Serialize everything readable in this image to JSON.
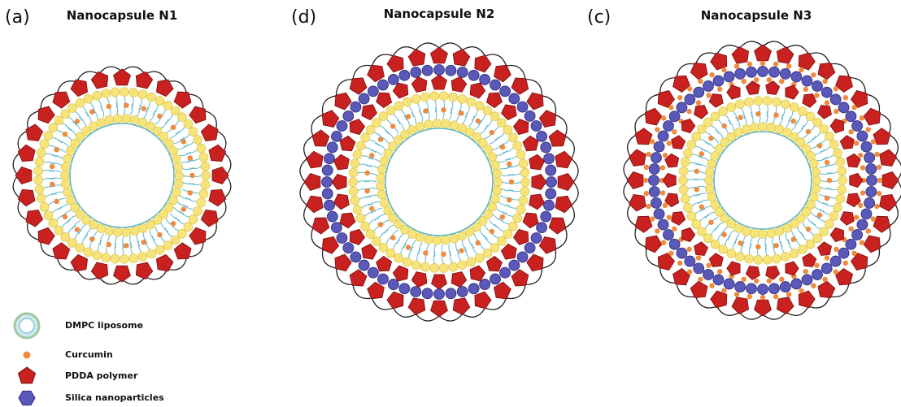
{
  "panels": [
    {
      "label": "(a)",
      "title": "Nanocapsule N1"
    },
    {
      "label": "(d)",
      "title": "Nanocapsule N2"
    },
    {
      "label": "(c)",
      "title": "Nanocapsule N3"
    }
  ],
  "legend": [
    {
      "label": "DMPC liposome"
    },
    {
      "label": "Curcumin"
    },
    {
      "label": "PDDA polymer"
    },
    {
      "label": "Silica nanoparticles"
    }
  ]
}
